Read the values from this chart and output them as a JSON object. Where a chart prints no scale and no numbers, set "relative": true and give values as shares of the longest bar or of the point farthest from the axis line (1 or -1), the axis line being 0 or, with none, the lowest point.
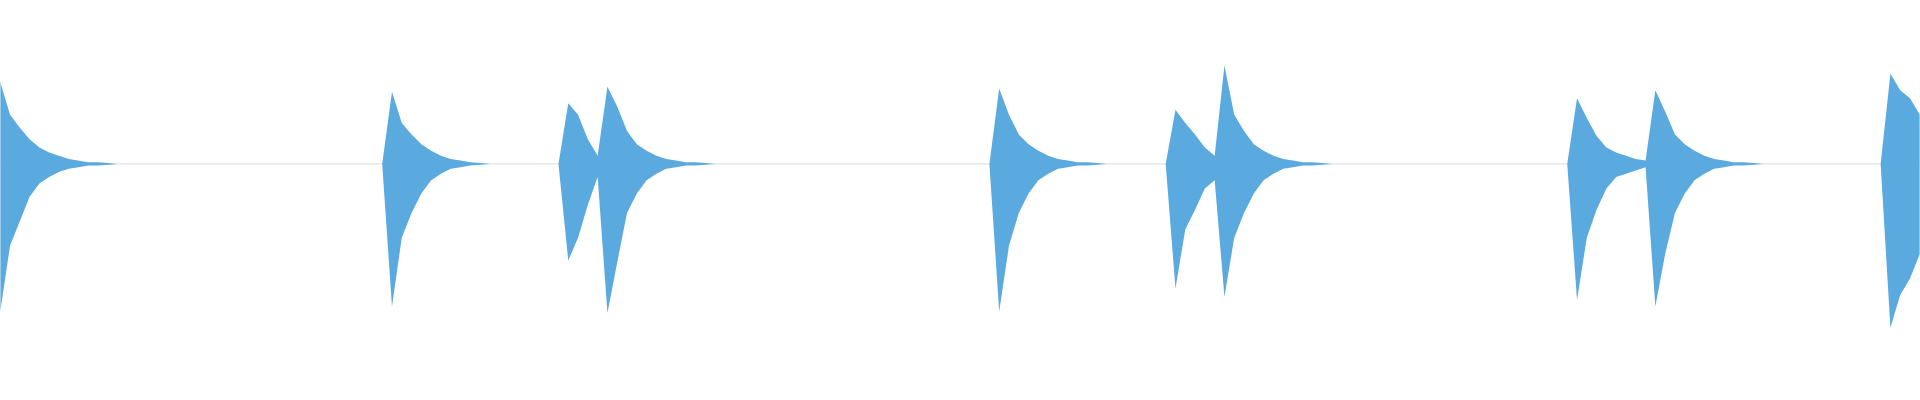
{
  "chart_data": {
    "type": "area",
    "relative": true,
    "categories": [
      null,
      null,
      null,
      null,
      null,
      null,
      null,
      null,
      null,
      null,
      null,
      null,
      null,
      null,
      null,
      null,
      null,
      null,
      null,
      null,
      null,
      null,
      null,
      null,
      null,
      null,
      null,
      null,
      null,
      null,
      null,
      null,
      null,
      null,
      null,
      null,
      null,
      null,
      null,
      null,
      null,
      null,
      null,
      null,
      null,
      null,
      null,
      null,
      null,
      null,
      null,
      null,
      null,
      null,
      null,
      null,
      null,
      null,
      null,
      null,
      null,
      null,
      null,
      null,
      null,
      null,
      null,
      null,
      null,
      null,
      null,
      null,
      null,
      null,
      null,
      null,
      null,
      null,
      null,
      null,
      null,
      null,
      null,
      null,
      null,
      null,
      null,
      null,
      null,
      null,
      null,
      null,
      null,
      null,
      null,
      null,
      null,
      null,
      null,
      null,
      null,
      null,
      null,
      null,
      null,
      null,
      null,
      null,
      null,
      null,
      null,
      null,
      null,
      null,
      null,
      null,
      null,
      null,
      null,
      null,
      null,
      null,
      null,
      null,
      null,
      null,
      null,
      null,
      null,
      null,
      null,
      null,
      null,
      null,
      null,
      null,
      null,
      null,
      null,
      null,
      null,
      null,
      null,
      null,
      null,
      null,
      null,
      null,
      null,
      null,
      null,
      null,
      null,
      null,
      null,
      null,
      null,
      null,
      null,
      null,
      null,
      null,
      null,
      null,
      null,
      null,
      null,
      null,
      null,
      null,
      null,
      null,
      null,
      null,
      null,
      null,
      null,
      null,
      null,
      null,
      null,
      null,
      null,
      null,
      null,
      null,
      null,
      null,
      null,
      null,
      null,
      null,
      null,
      null,
      null,
      null,
      null
    ],
    "series": [
      {
        "color": "#5aaae0",
        "values": [
          0.5,
          0.3,
          0.22,
          0.15,
          0.1,
          0.07,
          0.05,
          0.03,
          0.02,
          0.01,
          0.01,
          0.005,
          0,
          0,
          0,
          0,
          0,
          0,
          0,
          0,
          0,
          0,
          0,
          0,
          0,
          0,
          0,
          0,
          0,
          0,
          0,
          0,
          0,
          0,
          0,
          0,
          0,
          0,
          0,
          0,
          0.44,
          0.25,
          0.18,
          0.12,
          0.08,
          0.05,
          0.03,
          0.02,
          0.01,
          0.005,
          0,
          0,
          0,
          0,
          0,
          0,
          0,
          0,
          0.37,
          0.3,
          0.15,
          0.05,
          0.47,
          0.35,
          0.2,
          0.12,
          0.08,
          0.05,
          0.03,
          0.02,
          0.01,
          0.01,
          0.005,
          0,
          0,
          0,
          0,
          0,
          0,
          0,
          0,
          0,
          0,
          0,
          0,
          0,
          0,
          0,
          0,
          0,
          0,
          0,
          0,
          0,
          0,
          0,
          0,
          0,
          0,
          0,
          0,
          0,
          0.46,
          0.3,
          0.18,
          0.12,
          0.08,
          0.05,
          0.03,
          0.02,
          0.01,
          0.01,
          0.005,
          0,
          0,
          0,
          0,
          0,
          0,
          0,
          0.33,
          0.25,
          0.18,
          0.1,
          0.05,
          0.6,
          0.3,
          0.2,
          0.12,
          0.08,
          0.05,
          0.03,
          0.02,
          0.01,
          0.01,
          0.005,
          0,
          0,
          0,
          0,
          0,
          0,
          0,
          0,
          0,
          0,
          0,
          0,
          0,
          0,
          0,
          0,
          0,
          0,
          0,
          0,
          0,
          0,
          0,
          0,
          0,
          0.4,
          0.28,
          0.17,
          0.1,
          0.07,
          0.05,
          0.03,
          0.02,
          0.45,
          0.32,
          0.18,
          0.12,
          0.08,
          0.05,
          0.03,
          0.02,
          0.01,
          0.01,
          0.005,
          0,
          0,
          0,
          0,
          0,
          0,
          0,
          0,
          0,
          0,
          0,
          0,
          0,
          0.55,
          0.45,
          0.4,
          0.3
        ]
      },
      {
        "color": "#5aaae0",
        "values": [
          -0.9,
          -0.5,
          -0.35,
          -0.2,
          -0.12,
          -0.08,
          -0.05,
          -0.03,
          -0.02,
          -0.01,
          -0.01,
          -0.005,
          0,
          0,
          0,
          0,
          0,
          0,
          0,
          0,
          0,
          0,
          0,
          0,
          0,
          0,
          0,
          0,
          0,
          0,
          0,
          0,
          0,
          0,
          0,
          0,
          0,
          0,
          0,
          0,
          -0.87,
          -0.45,
          -0.3,
          -0.18,
          -0.1,
          -0.06,
          -0.03,
          -0.02,
          -0.01,
          -0.005,
          0,
          0,
          0,
          0,
          0,
          0,
          0,
          0,
          -0.59,
          -0.45,
          -0.25,
          -0.08,
          -0.91,
          -0.6,
          -0.3,
          -0.18,
          -0.1,
          -0.06,
          -0.03,
          -0.02,
          -0.01,
          -0.01,
          -0.005,
          0,
          0,
          0,
          0,
          0,
          0,
          0,
          0,
          0,
          0,
          0,
          0,
          0,
          0,
          0,
          0,
          0,
          0,
          0,
          0,
          0,
          0,
          0,
          0,
          0,
          0,
          0,
          0,
          0,
          -0.9,
          -0.5,
          -0.3,
          -0.18,
          -0.1,
          -0.06,
          -0.03,
          -0.02,
          -0.01,
          -0.01,
          -0.005,
          0,
          0,
          0,
          0,
          0,
          0,
          0,
          -0.76,
          -0.4,
          -0.28,
          -0.15,
          -0.1,
          -0.81,
          -0.45,
          -0.3,
          -0.18,
          -0.1,
          -0.06,
          -0.03,
          -0.02,
          -0.01,
          -0.01,
          -0.005,
          0,
          0,
          0,
          0,
          0,
          0,
          0,
          0,
          0,
          0,
          0,
          0,
          0,
          0,
          0,
          0,
          0,
          0,
          0,
          0,
          0,
          0,
          0,
          0,
          0,
          -0.83,
          -0.45,
          -0.28,
          -0.15,
          -0.08,
          -0.06,
          -0.04,
          -0.02,
          -0.87,
          -0.55,
          -0.3,
          -0.18,
          -0.1,
          -0.06,
          -0.03,
          -0.02,
          -0.01,
          -0.01,
          -0.005,
          0,
          0,
          0,
          0,
          0,
          0,
          0,
          0,
          0,
          0,
          0,
          0,
          0,
          -1,
          -0.8,
          -0.7,
          -0.55
        ]
      }
    ]
  }
}
